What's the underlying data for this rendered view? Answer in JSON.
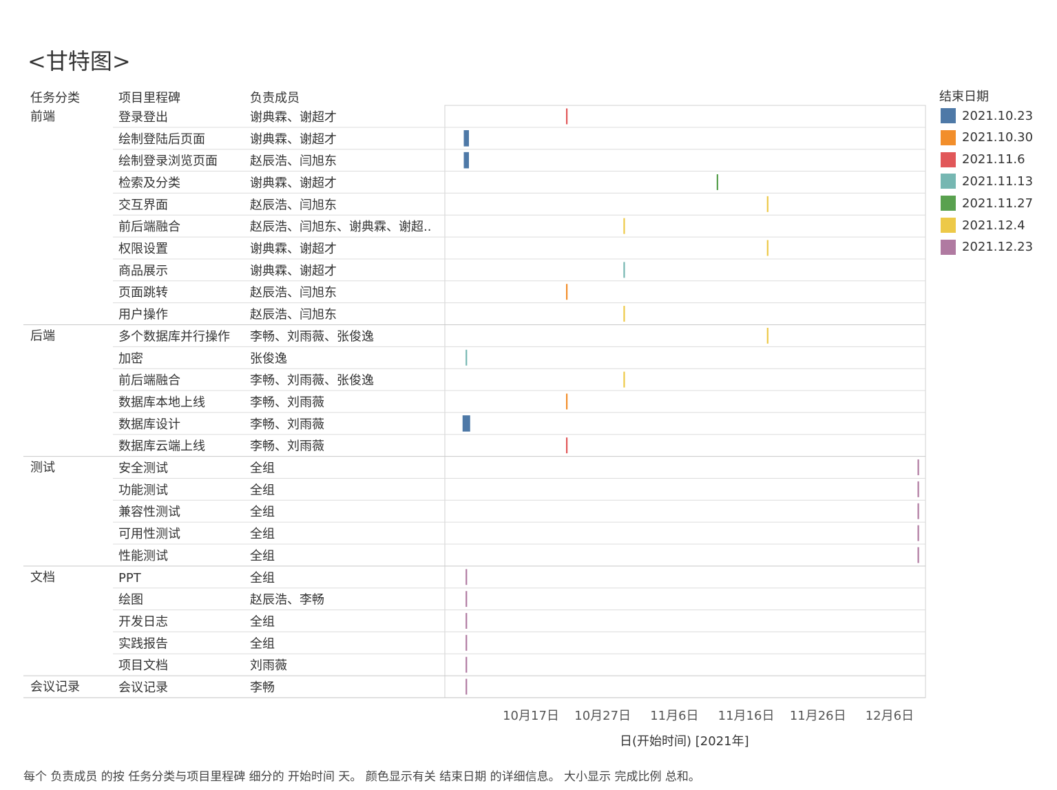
{
  "title": "<甘特图>",
  "headers": {
    "category": "任务分类",
    "milestone": "项目里程碑",
    "members": "负责成员"
  },
  "legend": {
    "title": "结束日期",
    "items": [
      {
        "label": "2021.10.23",
        "color": "#4e79a7"
      },
      {
        "label": "2021.10.30",
        "color": "#f28e2b"
      },
      {
        "label": "2021.11.6",
        "color": "#e15759"
      },
      {
        "label": "2021.11.13",
        "color": "#76b7b2"
      },
      {
        "label": "2021.11.27",
        "color": "#59a14f"
      },
      {
        "label": "2021.12.4",
        "color": "#edc948"
      },
      {
        "label": "2021.12.23",
        "color": "#b07aa1"
      }
    ]
  },
  "chart_data": {
    "type": "gantt",
    "x_axis": {
      "label": "日(开始时间) [2021年]",
      "ticks": [
        "10月17日",
        "10月27日",
        "11月6日",
        "11月16日",
        "11月26日",
        "12月6日"
      ],
      "tick_dates": [
        "2021-10-17",
        "2021-10-27",
        "2021-11-06",
        "2021-11-16",
        "2021-11-26",
        "2021-12-06"
      ],
      "range": [
        "2021-10-05",
        "2021-12-11"
      ]
    },
    "groups": [
      {
        "name": "前端",
        "rows": 10
      },
      {
        "name": "后端",
        "rows": 6
      },
      {
        "name": "测试",
        "rows": 5
      },
      {
        "name": "文档",
        "rows": 5
      },
      {
        "name": "会议记录",
        "rows": 1
      }
    ],
    "tasks": [
      {
        "category": "前端",
        "milestone": "登录登出",
        "members": "谢典霖、谢超才",
        "start": "2021-10-22",
        "end": "2021.11.6",
        "size": "small"
      },
      {
        "category": "前端",
        "milestone": "绘制登陆后页面",
        "members": "谢典霖、谢超才",
        "start": "2021-10-08",
        "end": "2021.10.23",
        "size": "medium"
      },
      {
        "category": "前端",
        "milestone": "绘制登录浏览页面",
        "members": "赵辰浩、闫旭东",
        "start": "2021-10-08",
        "end": "2021.10.23",
        "size": "medium"
      },
      {
        "category": "前端",
        "milestone": "检索及分类",
        "members": "谢典霖、谢超才",
        "start": "2021-11-12",
        "end": "2021.11.27",
        "size": "small"
      },
      {
        "category": "前端",
        "milestone": "交互界面",
        "members": "赵辰浩、闫旭东",
        "start": "2021-11-19",
        "end": "2021.12.4",
        "size": "small"
      },
      {
        "category": "前端",
        "milestone": "前后端融合",
        "members": "赵辰浩、闫旭东、谢典霖、谢超..",
        "start": "2021-10-30",
        "end": "2021.12.4",
        "size": "small"
      },
      {
        "category": "前端",
        "milestone": "权限设置",
        "members": "谢典霖、谢超才",
        "start": "2021-11-19",
        "end": "2021.12.4",
        "size": "small"
      },
      {
        "category": "前端",
        "milestone": "商品展示",
        "members": "谢典霖、谢超才",
        "start": "2021-10-30",
        "end": "2021.11.13",
        "size": "small"
      },
      {
        "category": "前端",
        "milestone": "页面跳转",
        "members": "赵辰浩、闫旭东",
        "start": "2021-10-22",
        "end": "2021.10.30",
        "size": "small"
      },
      {
        "category": "前端",
        "milestone": "用户操作",
        "members": "赵辰浩、闫旭东",
        "start": "2021-10-30",
        "end": "2021.12.4",
        "size": "small"
      },
      {
        "category": "后端",
        "milestone": "多个数据库并行操作",
        "members": "李畅、刘雨薇、张俊逸",
        "start": "2021-11-19",
        "end": "2021.12.4",
        "size": "small"
      },
      {
        "category": "后端",
        "milestone": "加密",
        "members": "张俊逸",
        "start": "2021-10-08",
        "end": "2021.11.13",
        "size": "small"
      },
      {
        "category": "后端",
        "milestone": "前后端融合",
        "members": "李畅、刘雨薇、张俊逸",
        "start": "2021-10-30",
        "end": "2021.12.4",
        "size": "small"
      },
      {
        "category": "后端",
        "milestone": "数据库本地上线",
        "members": "李畅、刘雨薇",
        "start": "2021-10-22",
        "end": "2021.10.30",
        "size": "small"
      },
      {
        "category": "后端",
        "milestone": "数据库设计",
        "members": "李畅、刘雨薇",
        "start": "2021-10-08",
        "end": "2021.10.23",
        "size": "large"
      },
      {
        "category": "后端",
        "milestone": "数据库云端上线",
        "members": "李畅、刘雨薇",
        "start": "2021-10-22",
        "end": "2021.11.6",
        "size": "small"
      },
      {
        "category": "测试",
        "milestone": "安全测试",
        "members": "全组",
        "start": "2021-12-10",
        "end": "2021.12.23",
        "size": "small"
      },
      {
        "category": "测试",
        "milestone": "功能测试",
        "members": "全组",
        "start": "2021-12-10",
        "end": "2021.12.23",
        "size": "small"
      },
      {
        "category": "测试",
        "milestone": "兼容性测试",
        "members": "全组",
        "start": "2021-12-10",
        "end": "2021.12.23",
        "size": "small"
      },
      {
        "category": "测试",
        "milestone": "可用性测试",
        "members": "全组",
        "start": "2021-12-10",
        "end": "2021.12.23",
        "size": "small"
      },
      {
        "category": "测试",
        "milestone": "性能测试",
        "members": "全组",
        "start": "2021-12-10",
        "end": "2021.12.23",
        "size": "small"
      },
      {
        "category": "文档",
        "milestone": "PPT",
        "members": "全组",
        "start": "2021-10-08",
        "end": "2021.12.23",
        "size": "small"
      },
      {
        "category": "文档",
        "milestone": "绘图",
        "members": "赵辰浩、李畅",
        "start": "2021-10-08",
        "end": "2021.12.23",
        "size": "small"
      },
      {
        "category": "文档",
        "milestone": "开发日志",
        "members": "全组",
        "start": "2021-10-08",
        "end": "2021.12.23",
        "size": "small"
      },
      {
        "category": "文档",
        "milestone": "实践报告",
        "members": "全组",
        "start": "2021-10-08",
        "end": "2021.12.23",
        "size": "small"
      },
      {
        "category": "文档",
        "milestone": "项目文档",
        "members": "刘雨薇",
        "start": "2021-10-08",
        "end": "2021.12.23",
        "size": "small"
      },
      {
        "category": "会议记录",
        "milestone": "会议记录",
        "members": "李畅",
        "start": "2021-10-08",
        "end": "2021.12.23",
        "size": "small"
      }
    ]
  },
  "caption": "每个 负责成员 的按 任务分类与项目里程碑 细分的 开始时间 天。 颜色显示有关 结束日期 的详细信息。 大小显示 完成比例 总和。"
}
